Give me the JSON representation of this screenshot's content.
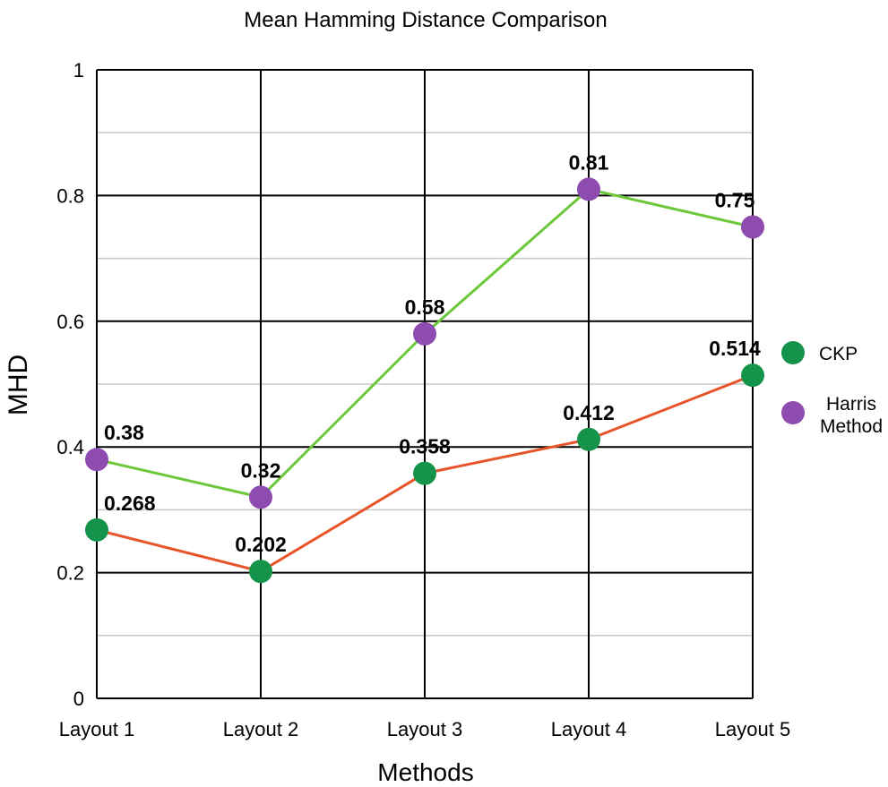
{
  "chart_data": {
    "type": "line",
    "title": "Mean Hamming Distance Comparison",
    "xlabel": "Methods",
    "ylabel": "MHD",
    "categories": [
      "Layout 1",
      "Layout 2",
      "Layout 3",
      "Layout 4",
      "Layout 5"
    ],
    "ylim": [
      0,
      1
    ],
    "yticks": [
      0,
      0.2,
      0.4,
      0.6,
      0.8,
      1
    ],
    "ytick_labels": [
      "0",
      "0.2",
      "0.4",
      "0.6",
      "0.8",
      "1"
    ],
    "grid": true,
    "legend_position": "right",
    "series": [
      {
        "name": "CKP",
        "values": [
          0.268,
          0.202,
          0.358,
          0.412,
          0.514
        ],
        "labels": [
          "0.268",
          "0.202",
          "0.358",
          "0.412",
          "0.514"
        ],
        "line_color": "#e8542a",
        "marker_color": "#16934a"
      },
      {
        "name": "Harris Method",
        "legend_lines": [
          "Harris",
          "Method"
        ],
        "values": [
          0.38,
          0.32,
          0.58,
          0.81,
          0.75
        ],
        "labels": [
          "0.38",
          "0.32",
          "0.58",
          "0.81",
          "0.75"
        ],
        "line_color": "#6cc83a",
        "marker_color": "#8e4bb0"
      }
    ]
  }
}
